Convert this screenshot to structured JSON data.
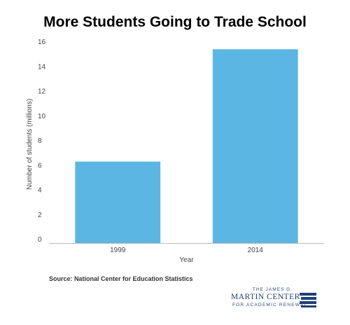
{
  "title": "More Students Going to Trade School",
  "chart_data": {
    "type": "bar",
    "categories": [
      "1999",
      "2014"
    ],
    "values": [
      6.6,
      15.7
    ],
    "xlabel": "Year",
    "ylabel": "Number of students (millions)",
    "ylim": [
      0,
      16
    ],
    "yticks": [
      0,
      2,
      4,
      6,
      8,
      10,
      12,
      14,
      16
    ],
    "grid": false,
    "bar_color": "#5cb6e4"
  },
  "source": "Source: National Center for Education Statistics",
  "logo": {
    "line1": "THE JAMES G.",
    "line2": "MARTIN CENTER",
    "line3": "FOR ACADEMIC RENEWAL",
    "color": "#1f3f78"
  }
}
